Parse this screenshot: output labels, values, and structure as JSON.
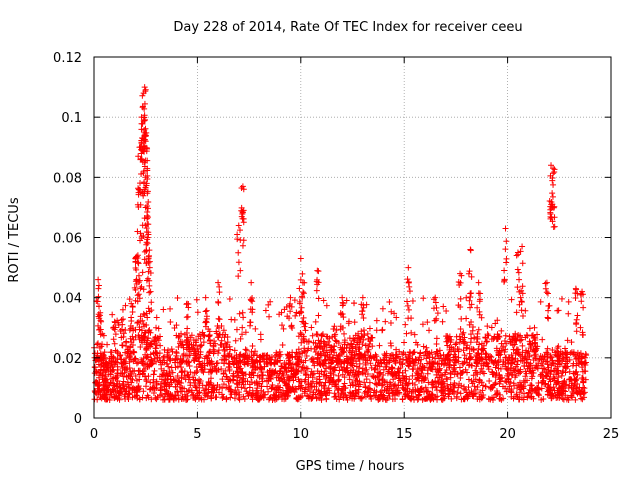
{
  "chart_data": {
    "type": "scatter",
    "title": "Day 228 of 2014, Rate Of TEC Index for receiver ceeu",
    "xlabel": "GPS time / hours",
    "ylabel": "ROTI / TECUs",
    "xlim": [
      0,
      25
    ],
    "ylim": [
      0,
      0.12
    ],
    "x_ticks": [
      0,
      5,
      10,
      15,
      20,
      25
    ],
    "x_tick_labels": [
      "0",
      "5",
      "10",
      "15",
      "20",
      "25"
    ],
    "y_ticks": [
      0,
      0.02,
      0.04,
      0.06,
      0.08,
      0.1,
      0.12
    ],
    "y_tick_labels": [
      "0",
      "0.02",
      "0.04",
      "0.06",
      "0.08",
      "0.1",
      "0.12"
    ],
    "grid": true,
    "marker": "plus",
    "series": [
      {
        "name": "ROTI",
        "color": "#ff0000",
        "data_range": {
          "x": [
            0,
            23.8
          ],
          "y": [
            0.003,
            0.11
          ]
        },
        "points": [
          [
            0.1,
            0.012
          ],
          [
            0.2,
            0.046
          ],
          [
            0.3,
            0.035
          ],
          [
            0.4,
            0.028
          ],
          [
            0.6,
            0.018
          ],
          [
            1.0,
            0.032
          ],
          [
            1.4,
            0.036
          ],
          [
            1.8,
            0.038
          ],
          [
            2.0,
            0.053
          ],
          [
            2.1,
            0.062
          ],
          [
            2.2,
            0.09
          ],
          [
            2.3,
            0.1
          ],
          [
            2.4,
            0.108
          ],
          [
            2.45,
            0.11
          ],
          [
            2.5,
            0.092
          ],
          [
            2.55,
            0.078
          ],
          [
            2.6,
            0.06
          ],
          [
            2.7,
            0.052
          ],
          [
            3.0,
            0.03
          ],
          [
            3.5,
            0.015
          ],
          [
            4.5,
            0.038
          ],
          [
            5.4,
            0.04
          ],
          [
            6.0,
            0.045
          ],
          [
            7.0,
            0.064
          ],
          [
            7.2,
            0.077
          ],
          [
            7.6,
            0.045
          ],
          [
            8.5,
            0.02
          ],
          [
            9.5,
            0.04
          ],
          [
            10.0,
            0.053
          ],
          [
            10.1,
            0.045
          ],
          [
            10.8,
            0.049
          ],
          [
            12.0,
            0.04
          ],
          [
            13.0,
            0.04
          ],
          [
            15.2,
            0.05
          ],
          [
            16.5,
            0.04
          ],
          [
            17.7,
            0.048
          ],
          [
            18.2,
            0.056
          ],
          [
            18.6,
            0.045
          ],
          [
            19.9,
            0.063
          ],
          [
            20.5,
            0.055
          ],
          [
            20.7,
            0.057
          ],
          [
            21.3,
            0.03
          ],
          [
            21.9,
            0.045
          ],
          [
            22.1,
            0.084
          ],
          [
            22.2,
            0.083
          ],
          [
            23.3,
            0.043
          ],
          [
            23.6,
            0.042
          ]
        ]
      }
    ]
  }
}
